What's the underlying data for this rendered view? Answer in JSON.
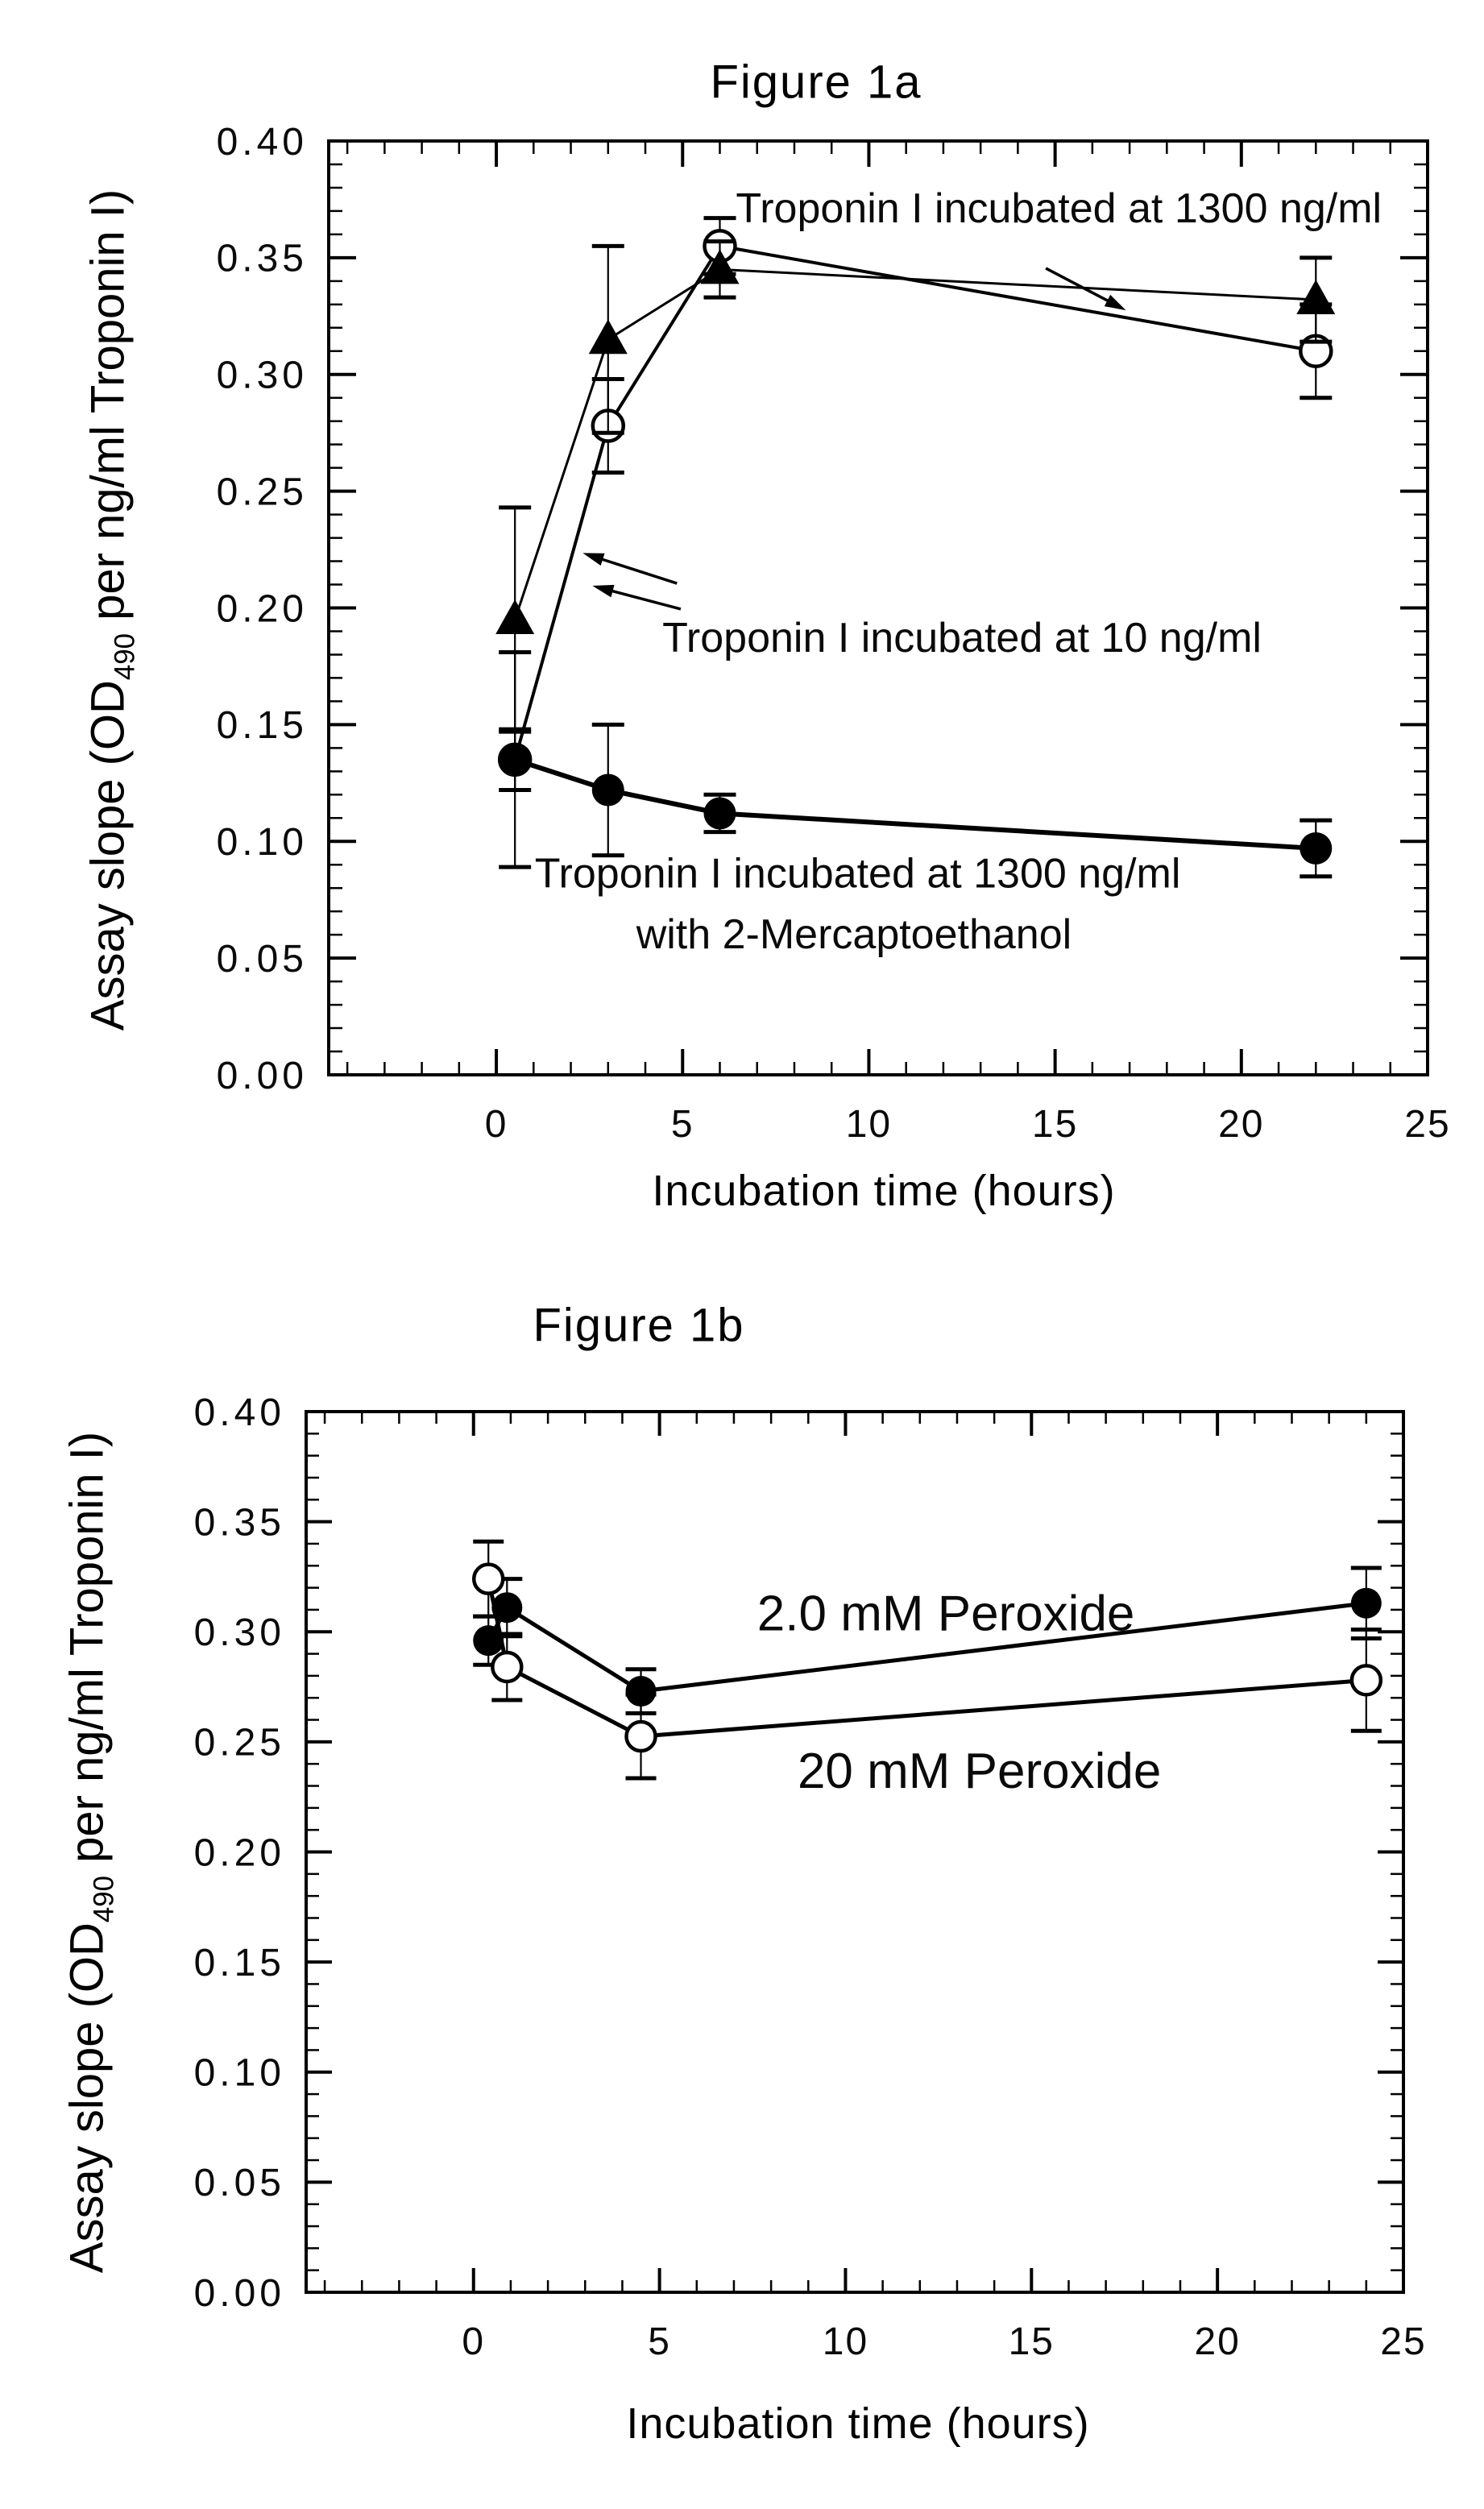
{
  "page": {
    "background": "#ffffff",
    "ink": "#000000"
  },
  "chart_data": [
    {
      "id": "fig1a",
      "type": "line",
      "title": "Figure 1a",
      "xlabel": "Incubation time (hours)",
      "ylabel_prefix": "Assay slope (OD",
      "ylabel_sub": "490",
      "ylabel_suffix": " per ng/ml Troponin I)",
      "xlim": [
        -4.5,
        25
      ],
      "ylim": [
        0,
        0.4
      ],
      "grid": false,
      "legend_position": "inline-annotations",
      "x_ticks": {
        "values": [
          0,
          5,
          10,
          15,
          20,
          25
        ],
        "labels": [
          "0",
          "5",
          "10",
          "15",
          "20",
          "25"
        ]
      },
      "x_minor_step": 1,
      "y_ticks": {
        "values": [
          0,
          0.05,
          0.1,
          0.15,
          0.2,
          0.25,
          0.3,
          0.35,
          0.4
        ],
        "labels": [
          "0.00",
          "0.05",
          "0.10",
          "0.15",
          "0.20",
          "0.25",
          "0.30",
          "0.35",
          "0.40"
        ]
      },
      "y_minor_step": 0.01,
      "series": [
        {
          "id": "troponin-1300",
          "label": "Troponin I incubated at 1300 ng/ml",
          "marker": "circle-open",
          "x": [
            0.5,
            3,
            6,
            22
          ],
          "y": [
            0.135,
            0.278,
            0.355,
            0.31
          ],
          "yerr": [
            0.013,
            0.02,
            0.012,
            0.02
          ]
        },
        {
          "id": "troponin-10",
          "label": "Troponin I incubated at 10 ng/ml",
          "marker": "triangle-filled",
          "x": [
            0.5,
            3,
            6,
            22
          ],
          "y": [
            0.195,
            0.315,
            0.345,
            0.332
          ],
          "yerr": [
            0.048,
            0.04,
            0.012,
            0.018
          ]
        },
        {
          "id": "troponin-1300-mercaptoethanol",
          "label": "Troponin I incubated at 1300 ng/ml with 2-Mercaptoethanol",
          "marker": "circle-filled",
          "x": [
            0.5,
            3,
            6,
            22
          ],
          "y": [
            0.135,
            0.122,
            0.112,
            0.097
          ],
          "yerr": [
            0.046,
            0.028,
            0.008,
            0.012
          ]
        }
      ],
      "annotations": [
        {
          "text": "Troponin I incubated at 1300 ng/ml",
          "x": 15.1,
          "y": 0.3715
        },
        {
          "text": "Troponin I incubated at 10 ng/ml",
          "x": 12.5,
          "y": 0.1875
        },
        {
          "text": "Troponin I incubated at 1300 ng/ml",
          "x": 9.7,
          "y": 0.0865
        },
        {
          "text": "with 2-Mercaptoethanol",
          "x": 9.6,
          "y": 0.0605
        }
      ],
      "arrows": [
        {
          "from": [
            14.75,
            0.3455
          ],
          "to": [
            16.9,
            0.3275
          ]
        },
        {
          "from": [
            4.85,
            0.2105
          ],
          "to": [
            2.32,
            0.2235
          ]
        },
        {
          "from": [
            4.95,
            0.1995
          ],
          "to": [
            2.58,
            0.2095
          ]
        }
      ]
    },
    {
      "id": "fig1b",
      "type": "line",
      "title": "Figure 1b",
      "xlabel": "Incubation time (hours)",
      "ylabel_prefix": "Assay slope (OD",
      "ylabel_sub": "490",
      "ylabel_suffix": " per ng/ml Troponin I)",
      "xlim": [
        -4.5,
        25
      ],
      "ylim": [
        0,
        0.4
      ],
      "grid": false,
      "legend_position": "inline-annotations",
      "x_ticks": {
        "values": [
          0,
          5,
          10,
          15,
          20,
          25
        ],
        "labels": [
          "0",
          "5",
          "10",
          "15",
          "20",
          "25"
        ]
      },
      "x_minor_step": 1,
      "y_ticks": {
        "values": [
          0,
          0.05,
          0.1,
          0.15,
          0.2,
          0.25,
          0.3,
          0.35,
          0.4
        ],
        "labels": [
          "0.00",
          "0.05",
          "0.10",
          "0.15",
          "0.20",
          "0.25",
          "0.30",
          "0.35",
          "0.40"
        ]
      },
      "y_minor_step": 0.01,
      "series": [
        {
          "id": "peroxide-2-0-mM",
          "label": "2.0 mM Peroxide",
          "marker": "circle-filled",
          "x": [
            0.4,
            0.9,
            4.5,
            24
          ],
          "y": [
            0.296,
            0.311,
            0.273,
            0.313
          ],
          "yerr": [
            0.011,
            0.013,
            0.01,
            0.016
          ]
        },
        {
          "id": "peroxide-20-mM",
          "label": "20 mM Peroxide",
          "marker": "circle-open",
          "x": [
            0.4,
            0.9,
            4.5,
            24
          ],
          "y": [
            0.324,
            0.284,
            0.2525,
            0.278
          ],
          "yerr": [
            0.017,
            0.015,
            0.019,
            0.023
          ]
        }
      ],
      "annotations": [
        {
          "text": "2.0 mM Peroxide",
          "x": 12.7,
          "y": 0.3085
        },
        {
          "text": "20 mM Peroxide",
          "x": 13.6,
          "y": 0.237
        }
      ],
      "arrows": []
    }
  ]
}
